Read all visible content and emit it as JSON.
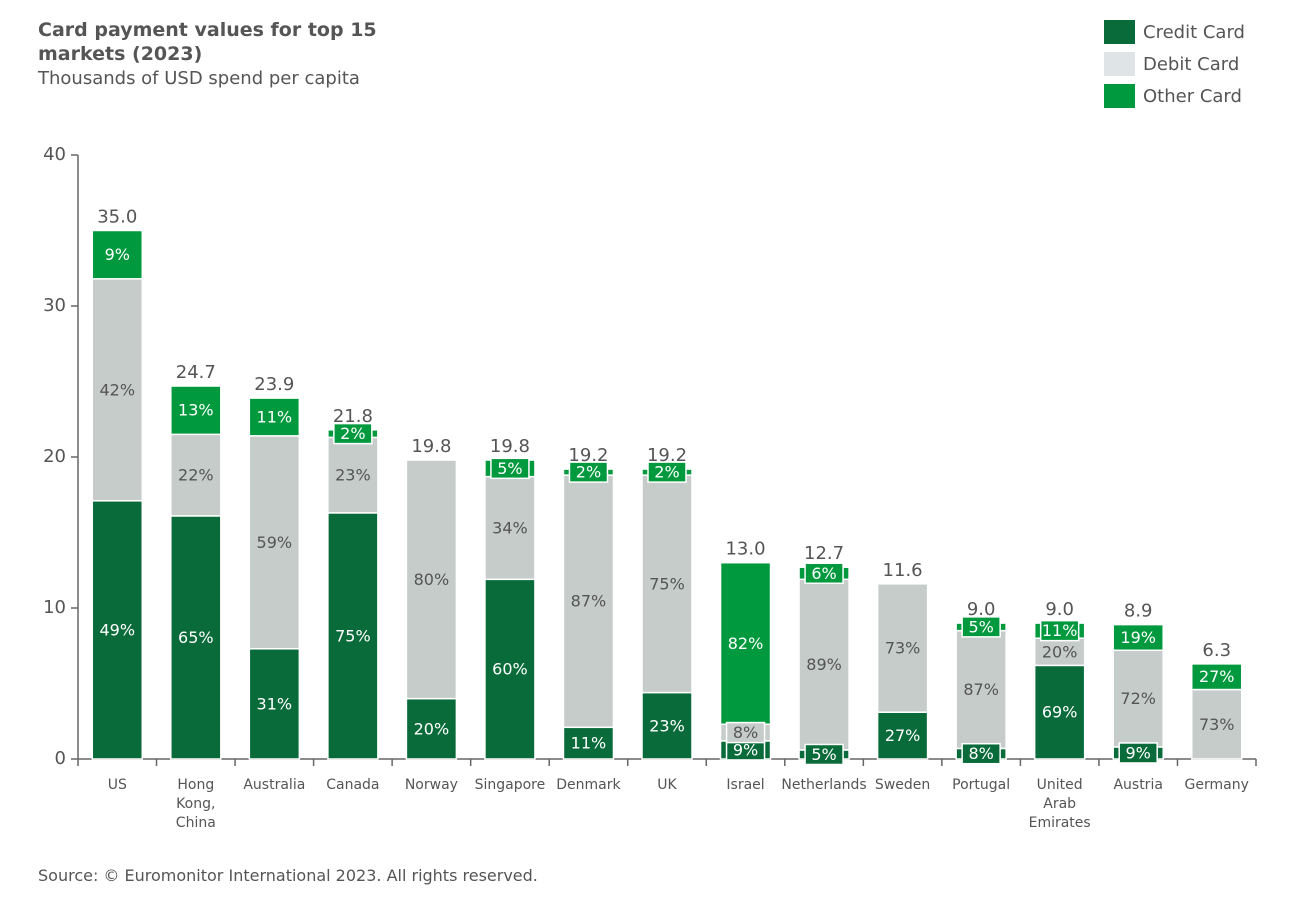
{
  "chart_data": {
    "type": "stacked_bar",
    "title": "Card payment values for top 15 markets (2023)",
    "subtitle": "Thousands of USD spend per capita",
    "source": "Source: © Euromonitor International 2023. All rights reserved.",
    "categories": [
      "US",
      "Hong Kong, China",
      "Australia",
      "Canada",
      "Norway",
      "Singapore",
      "Denmark",
      "UK",
      "Israel",
      "Netherlands",
      "Sweden",
      "Portugal",
      "United Arab Emirates",
      "Austria",
      "Germany"
    ],
    "totals": [
      35.0,
      24.7,
      23.9,
      21.8,
      19.8,
      19.8,
      19.2,
      19.2,
      13.0,
      12.7,
      11.6,
      9.0,
      9.0,
      8.9,
      6.3
    ],
    "total_labels": [
      "35.0",
      "24.7",
      "23.9",
      "21.8",
      "19.8",
      "19.8",
      "19.2",
      "19.2",
      "13.0",
      "12.7",
      "11.6",
      "9.0",
      "9.0",
      "8.9",
      "6.3"
    ],
    "series": [
      {
        "name": "Credit Card",
        "color": "#0a6b3a",
        "values": [
          17.1,
          16.1,
          7.3,
          16.3,
          4.0,
          11.9,
          2.1,
          4.4,
          1.2,
          0.6,
          3.1,
          0.7,
          6.2,
          0.8,
          null
        ],
        "share_labels": [
          "49%",
          "65%",
          "31%",
          "75%",
          "20%",
          "60%",
          "11%",
          "23%",
          "9%",
          "5%",
          "27%",
          "8%",
          "69%",
          "9%",
          null
        ]
      },
      {
        "name": "Debit Card",
        "color": "#c6ccc9",
        "values": [
          14.7,
          5.4,
          14.1,
          5.0,
          15.8,
          6.8,
          16.7,
          14.4,
          1.1,
          11.3,
          8.5,
          7.8,
          1.8,
          6.4,
          4.6
        ],
        "share_labels": [
          "42%",
          "22%",
          "59%",
          "23%",
          "80%",
          "34%",
          "87%",
          "75%",
          "8%",
          "89%",
          "73%",
          "87%",
          "20%",
          "72%",
          "73%"
        ]
      },
      {
        "name": "Other Card",
        "color": "#00993d",
        "values": [
          3.2,
          3.2,
          2.5,
          0.5,
          null,
          1.1,
          0.4,
          0.4,
          10.7,
          0.8,
          null,
          0.5,
          1.0,
          1.7,
          1.7
        ],
        "share_labels": [
          "9%",
          "13%",
          "11%",
          "2%",
          null,
          "5%",
          "2%",
          "2%",
          "82%",
          "6%",
          null,
          "5%",
          "11%",
          "19%",
          "27%"
        ]
      }
    ],
    "ylim": [
      0,
      40
    ],
    "yticks": [
      0,
      10,
      20,
      30,
      40
    ],
    "legend": "top-right"
  }
}
